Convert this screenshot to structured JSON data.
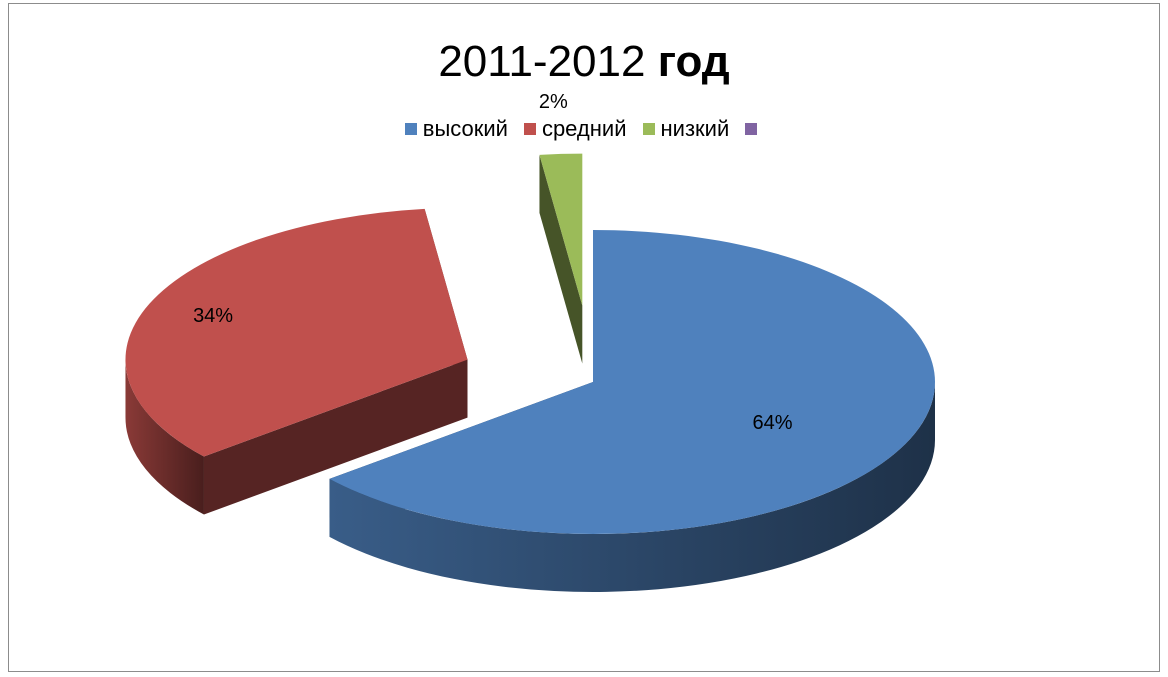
{
  "chart_data": {
    "type": "pie",
    "title_regular": "2011-2012 ",
    "title_bold": "год",
    "categories": [
      "высокий",
      "средний",
      "низкий",
      ""
    ],
    "values": [
      64,
      34,
      2,
      0
    ],
    "data_labels": [
      "64%",
      "34%",
      "2%",
      ""
    ],
    "colors": [
      "#4f81bd",
      "#c0504d",
      "#9bbb59",
      "#8064a2"
    ],
    "legend_position": "top",
    "style": "3d-exploded"
  }
}
